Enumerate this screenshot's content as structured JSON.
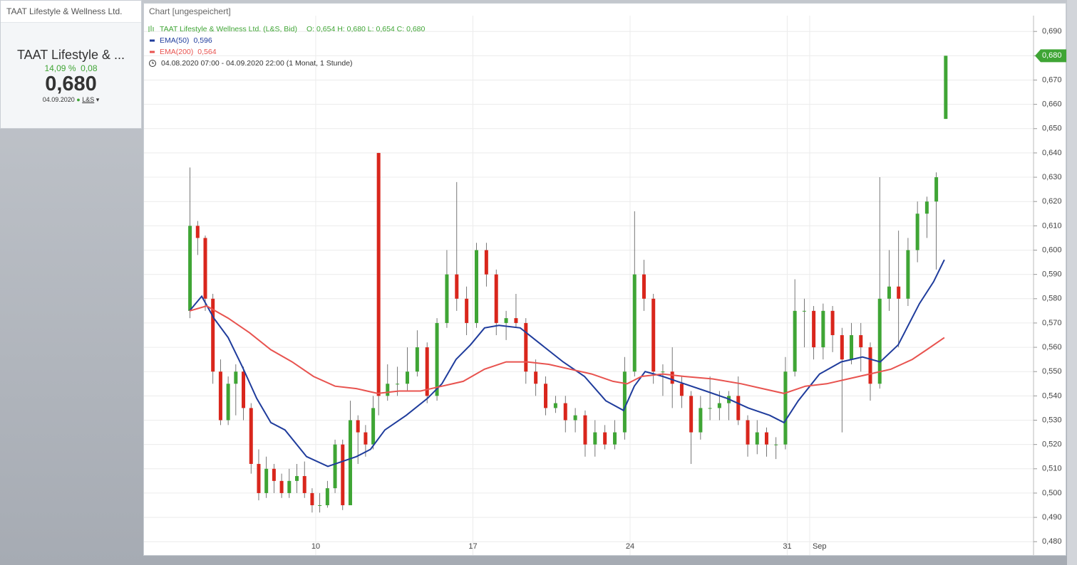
{
  "sidebar": {
    "header": "TAAT Lifestyle & Wellness Ltd.",
    "name": "TAAT Lifestyle & ...",
    "change_percent": "14,09 %",
    "change": "0,08",
    "price": "0,680",
    "date": "04.09.2020",
    "exchange": "L&S"
  },
  "chart_data": {
    "type": "candlestick",
    "title": "Chart [ungespeichert]",
    "legend": {
      "instrument": "TAAT Lifestyle & Wellness Ltd. (L&S, Bid)",
      "ohlc": "O: 0,654  H: 0,680  L: 0,654  C: 0,680",
      "range": "04.08.2020 07:00 - 04.09.2020 22:00   (1 Monat, 1 Stunde)"
    },
    "last_label": "0,680",
    "up_color": "#3fa535",
    "down_color": "#d9261c",
    "x": [
      4.4,
      4.74,
      5.08,
      5.42,
      5.76,
      6.1,
      6.44,
      6.78,
      7.12,
      7.46,
      7.8,
      8.14,
      8.48,
      8.82,
      9.16,
      9.5,
      9.84,
      10.18,
      10.52,
      10.86,
      11.2,
      11.54,
      11.88,
      12.22,
      12.56,
      12.8,
      13.2,
      13.64,
      14.08,
      14.52,
      14.96,
      15.4,
      15.84,
      16.28,
      16.72,
      17.16,
      17.6,
      18.04,
      18.48,
      18.92,
      19.36,
      19.8,
      20.24,
      20.68,
      21.12,
      21.56,
      22.0,
      22.44,
      22.88,
      23.32,
      23.76,
      24.2,
      24.62,
      25.04,
      25.46,
      25.88,
      26.3,
      26.72,
      27.14,
      27.56,
      27.98,
      28.4,
      28.82,
      29.24,
      29.66,
      30.08,
      30.5,
      30.92,
      31.34,
      31.76,
      32.18,
      32.6,
      33.02,
      33.44,
      33.86,
      34.28,
      34.7,
      35.12,
      35.54,
      35.96,
      36.38,
      36.8,
      37.22,
      37.64,
      38.06
    ],
    "open": [
      0.575,
      0.61,
      0.605,
      0.58,
      0.55,
      0.53,
      0.545,
      0.55,
      0.535,
      0.512,
      0.5,
      0.51,
      0.505,
      0.5,
      0.505,
      0.507,
      0.5,
      0.495,
      0.495,
      0.502,
      0.52,
      0.495,
      0.53,
      0.525,
      0.52,
      0.64,
      0.54,
      0.545,
      0.545,
      0.55,
      0.56,
      0.54,
      0.57,
      0.59,
      0.58,
      0.57,
      0.6,
      0.59,
      0.57,
      0.572,
      0.57,
      0.55,
      0.545,
      0.535,
      0.537,
      0.53,
      0.532,
      0.52,
      0.525,
      0.52,
      0.525,
      0.55,
      0.59,
      0.58,
      0.55,
      0.55,
      0.545,
      0.54,
      0.525,
      0.535,
      0.535,
      0.537,
      0.54,
      0.53,
      0.52,
      0.525,
      0.52,
      0.52,
      0.55,
      0.575,
      0.575,
      0.56,
      0.575,
      0.565,
      0.555,
      0.565,
      0.56,
      0.545,
      0.58,
      0.585,
      0.58,
      0.6,
      0.615,
      0.62,
      0.654
    ],
    "high": [
      0.634,
      0.612,
      0.606,
      0.582,
      0.555,
      0.548,
      0.553,
      0.552,
      0.537,
      0.518,
      0.515,
      0.512,
      0.508,
      0.51,
      0.512,
      0.513,
      0.502,
      0.5,
      0.505,
      0.522,
      0.522,
      0.538,
      0.532,
      0.528,
      0.54,
      0.64,
      0.553,
      0.552,
      0.56,
      0.567,
      0.562,
      0.572,
      0.6,
      0.628,
      0.585,
      0.603,
      0.603,
      0.592,
      0.575,
      0.582,
      0.572,
      0.555,
      0.548,
      0.54,
      0.54,
      0.535,
      0.534,
      0.53,
      0.528,
      0.53,
      0.556,
      0.616,
      0.596,
      0.582,
      0.553,
      0.56,
      0.548,
      0.542,
      0.54,
      0.548,
      0.542,
      0.542,
      0.548,
      0.532,
      0.53,
      0.527,
      0.523,
      0.556,
      0.588,
      0.58,
      0.577,
      0.578,
      0.577,
      0.568,
      0.57,
      0.57,
      0.562,
      0.63,
      0.6,
      0.608,
      0.605,
      0.62,
      0.622,
      0.632,
      0.68
    ],
    "low": [
      0.572,
      0.598,
      0.575,
      0.545,
      0.528,
      0.528,
      0.532,
      0.53,
      0.508,
      0.497,
      0.498,
      0.5,
      0.498,
      0.498,
      0.5,
      0.498,
      0.492,
      0.492,
      0.494,
      0.5,
      0.493,
      0.495,
      0.512,
      0.515,
      0.518,
      0.532,
      0.538,
      0.54,
      0.542,
      0.548,
      0.537,
      0.538,
      0.568,
      0.575,
      0.565,
      0.568,
      0.585,
      0.565,
      0.563,
      0.568,
      0.545,
      0.54,
      0.532,
      0.533,
      0.525,
      0.525,
      0.515,
      0.515,
      0.518,
      0.518,
      0.522,
      0.548,
      0.575,
      0.545,
      0.54,
      0.535,
      0.535,
      0.512,
      0.522,
      0.53,
      0.53,
      0.53,
      0.528,
      0.515,
      0.516,
      0.515,
      0.514,
      0.518,
      0.548,
      0.56,
      0.555,
      0.555,
      0.558,
      0.525,
      0.553,
      0.55,
      0.538,
      0.543,
      0.575,
      0.56,
      0.577,
      0.595,
      0.605,
      0.592,
      0.654
    ],
    "close": [
      0.61,
      0.605,
      0.58,
      0.55,
      0.53,
      0.545,
      0.55,
      0.535,
      0.512,
      0.5,
      0.51,
      0.505,
      0.5,
      0.505,
      0.507,
      0.5,
      0.495,
      0.495,
      0.502,
      0.52,
      0.495,
      0.53,
      0.525,
      0.52,
      0.535,
      0.54,
      0.545,
      0.545,
      0.55,
      0.56,
      0.54,
      0.57,
      0.59,
      0.58,
      0.57,
      0.6,
      0.59,
      0.57,
      0.572,
      0.57,
      0.55,
      0.545,
      0.535,
      0.537,
      0.53,
      0.532,
      0.52,
      0.525,
      0.52,
      0.525,
      0.55,
      0.59,
      0.58,
      0.55,
      0.55,
      0.545,
      0.54,
      0.525,
      0.535,
      0.535,
      0.537,
      0.54,
      0.53,
      0.52,
      0.525,
      0.52,
      0.52,
      0.55,
      0.575,
      0.575,
      0.56,
      0.575,
      0.565,
      0.555,
      0.565,
      0.56,
      0.545,
      0.58,
      0.585,
      0.58,
      0.6,
      0.615,
      0.62,
      0.63,
      0.68
    ],
    "series": [
      {
        "name": "EMA(50)",
        "value_label": "0,596",
        "color": "#1f3c9c",
        "x": [
          4.38,
          4.92,
          5.46,
          6.1,
          6.73,
          7.37,
          8.0,
          8.63,
          9.59,
          10.54,
          11.81,
          12.44,
          13.08,
          14.03,
          14.98,
          15.62,
          16.25,
          16.89,
          17.52,
          18.16,
          19.11,
          20.06,
          21.02,
          21.97,
          22.92,
          23.71,
          24.19,
          24.67,
          25.46,
          26.41,
          27.37,
          28.32,
          29.27,
          30.22,
          30.86,
          31.49,
          32.44,
          33.4,
          34.35,
          35.14,
          35.94,
          36.89,
          37.52,
          38.0
        ],
        "values": [
          0.575,
          0.581,
          0.572,
          0.564,
          0.552,
          0.539,
          0.529,
          0.526,
          0.515,
          0.511,
          0.515,
          0.518,
          0.526,
          0.532,
          0.539,
          0.545,
          0.555,
          0.561,
          0.568,
          0.569,
          0.568,
          0.561,
          0.554,
          0.548,
          0.538,
          0.534,
          0.544,
          0.55,
          0.548,
          0.545,
          0.542,
          0.539,
          0.535,
          0.532,
          0.529,
          0.538,
          0.549,
          0.554,
          0.556,
          0.554,
          0.561,
          0.578,
          0.587,
          0.596
        ]
      },
      {
        "name": "EMA(200)",
        "value_label": "0,564",
        "color": "#e8534f",
        "x": [
          4.38,
          5.14,
          6.1,
          7.05,
          8.0,
          8.95,
          9.9,
          10.86,
          11.81,
          12.76,
          13.71,
          14.67,
          15.62,
          16.57,
          17.52,
          18.48,
          19.43,
          20.38,
          21.33,
          22.29,
          23.24,
          23.87,
          24.51,
          25.46,
          26.41,
          27.68,
          28.95,
          29.9,
          30.86,
          31.81,
          32.76,
          33.71,
          34.67,
          35.62,
          36.57,
          37.21,
          38.0
        ],
        "values": [
          0.575,
          0.577,
          0.572,
          0.566,
          0.559,
          0.554,
          0.548,
          0.544,
          0.543,
          0.541,
          0.542,
          0.542,
          0.544,
          0.546,
          0.551,
          0.554,
          0.554,
          0.553,
          0.551,
          0.549,
          0.546,
          0.545,
          0.548,
          0.549,
          0.548,
          0.547,
          0.545,
          0.543,
          0.541,
          0.544,
          0.545,
          0.547,
          0.549,
          0.551,
          0.555,
          0.559,
          0.564
        ]
      }
    ],
    "xlim": [
      2.35,
      41.97
    ],
    "xticks": [
      10,
      17,
      24,
      31,
      {
        "value": 32,
        "label": "Sep"
      }
    ],
    "ylim": [
      0.4745,
      0.6965
    ],
    "yticks": [
      {
        "value": 0.48,
        "label": "0,480"
      },
      {
        "value": 0.49,
        "label": "0,490"
      },
      {
        "value": 0.5,
        "label": "0,500"
      },
      {
        "value": 0.51,
        "label": "0,510"
      },
      {
        "value": 0.52,
        "label": "0,520"
      },
      {
        "value": 0.53,
        "label": "0,530"
      },
      {
        "value": 0.54,
        "label": "0,540"
      },
      {
        "value": 0.55,
        "label": "0,550"
      },
      {
        "value": 0.56,
        "label": "0,560"
      },
      {
        "value": 0.57,
        "label": "0,570"
      },
      {
        "value": 0.58,
        "label": "0,580"
      },
      {
        "value": 0.59,
        "label": "0,590"
      },
      {
        "value": 0.6,
        "label": "0,600"
      },
      {
        "value": 0.61,
        "label": "0,610"
      },
      {
        "value": 0.62,
        "label": "0,620"
      },
      {
        "value": 0.63,
        "label": "0,630"
      },
      {
        "value": 0.64,
        "label": "0,640"
      },
      {
        "value": 0.65,
        "label": "0,650"
      },
      {
        "value": 0.66,
        "label": "0,660"
      },
      {
        "value": 0.67,
        "label": "0,670"
      },
      {
        "value": 0.68,
        "label": "0,680"
      },
      {
        "value": 0.69,
        "label": "0,690"
      }
    ],
    "grid": true
  }
}
